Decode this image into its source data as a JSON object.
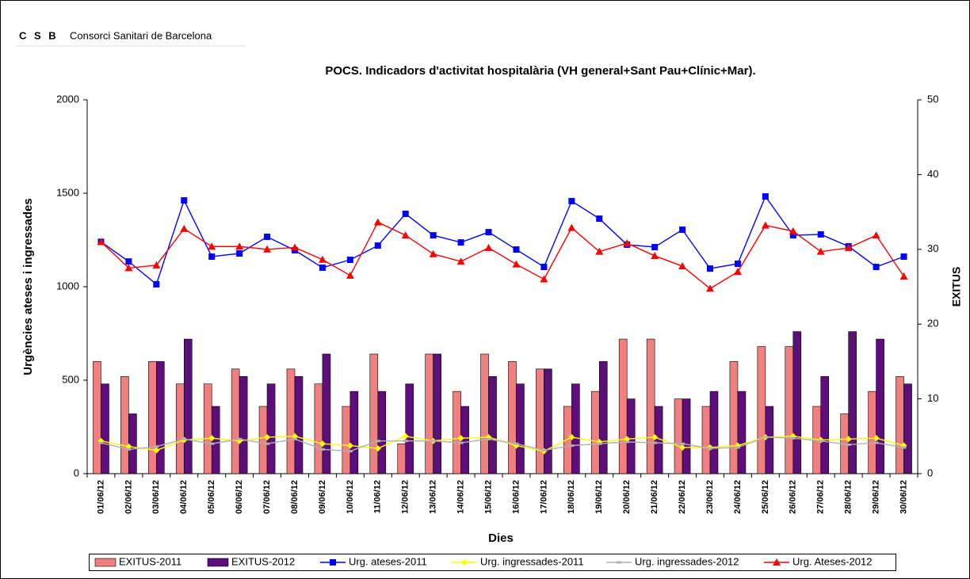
{
  "logo": {
    "mark": "C S B",
    "text": "Consorci Sanitari de Barcelona"
  },
  "chart_data": {
    "type": "combo",
    "title": "POCS.  Indicadors d'activitat hospitalària (VH general+Sant Pau+Clínic+Mar).",
    "y_label": "Urgències ateses i ingressades",
    "y2_label": "EXITUS",
    "x_label": "Dies",
    "categories": [
      "01/06/12",
      "02/06/12",
      "03/06/12",
      "04/06/12",
      "05/06/12",
      "06/06/12",
      "07/06/12",
      "08/06/12",
      "09/06/12",
      "10/06/12",
      "11/06/12",
      "12/06/12",
      "13/06/12",
      "14/06/12",
      "15/06/12",
      "16/06/12",
      "17/06/12",
      "18/06/12",
      "19/06/12",
      "20/06/12",
      "21/06/12",
      "22/06/12",
      "23/06/12",
      "24/06/12",
      "25/06/12",
      "26/06/12",
      "27/06/12",
      "28/06/12",
      "29/06/12",
      "30/06/12"
    ],
    "ylim": [
      0,
      2000
    ],
    "yticks": [
      0,
      500,
      1000,
      1500,
      2000
    ],
    "y2lim": [
      0,
      50
    ],
    "y2ticks": [
      0,
      10,
      20,
      30,
      40,
      50
    ],
    "grid": false,
    "legend": "bottom",
    "series": [
      {
        "name": "EXITUS-2011",
        "type": "bar",
        "axis": "y2",
        "color": "#f08080",
        "values": [
          15,
          13,
          15,
          12,
          12,
          14,
          9,
          14,
          12,
          9,
          16,
          4,
          16,
          11,
          16,
          15,
          14,
          9,
          11,
          18,
          18,
          10,
          9,
          15,
          17,
          17,
          9,
          8,
          11,
          13
        ]
      },
      {
        "name": "EXITUS-2012",
        "type": "bar",
        "axis": "y2",
        "color": "#5c0f7a",
        "values": [
          12,
          8,
          15,
          18,
          9,
          13,
          12,
          13,
          16,
          11,
          11,
          12,
          16,
          9,
          13,
          12,
          14,
          12,
          15,
          10,
          9,
          10,
          11,
          11,
          9,
          19,
          13,
          19,
          18,
          12
        ]
      },
      {
        "name": "Urg. ateses-2011",
        "type": "line",
        "marker": "square",
        "color": "#0000ff",
        "values": [
          1240,
          1135,
          1013,
          1462,
          1161,
          1178,
          1267,
          1195,
          1102,
          1144,
          1220,
          1390,
          1275,
          1237,
          1292,
          1199,
          1106,
          1458,
          1364,
          1225,
          1212,
          1305,
          1097,
          1123,
          1483,
          1275,
          1280,
          1216,
          1106,
          1161
        ]
      },
      {
        "name": "Urg. ingressades-2011",
        "type": "line",
        "marker": "diamond",
        "color": "#ffff00",
        "values": [
          175,
          145,
          125,
          180,
          190,
          175,
          195,
          200,
          160,
          150,
          135,
          200,
          175,
          190,
          195,
          150,
          120,
          195,
          170,
          185,
          195,
          140,
          140,
          150,
          195,
          200,
          180,
          185,
          190,
          150
        ]
      },
      {
        "name": "Urg. ingressades-2012",
        "type": "line",
        "marker": "dash",
        "color": "#b0b0b0",
        "values": [
          165,
          130,
          145,
          185,
          160,
          185,
          160,
          185,
          130,
          120,
          175,
          175,
          175,
          165,
          185,
          160,
          125,
          150,
          160,
          170,
          165,
          160,
          135,
          140,
          195,
          190,
          175,
          155,
          165,
          140
        ]
      },
      {
        "name": "Urg. Ateses-2012",
        "type": "line",
        "marker": "triangle",
        "color": "#ff0000",
        "values": [
          1240,
          1100,
          1115,
          1310,
          1215,
          1215,
          1200,
          1210,
          1145,
          1060,
          1345,
          1275,
          1175,
          1135,
          1208,
          1120,
          1040,
          1315,
          1188,
          1233,
          1165,
          1110,
          990,
          1080,
          1328,
          1297,
          1188,
          1208,
          1275,
          1055
        ]
      }
    ]
  }
}
